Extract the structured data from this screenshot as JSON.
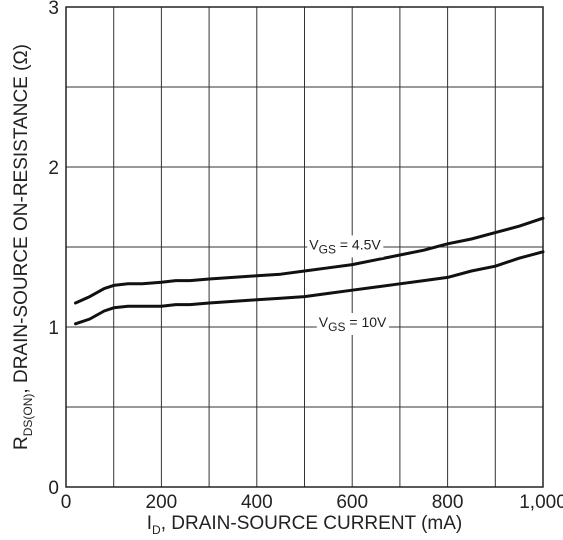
{
  "chart_data": {
    "type": "line",
    "xlabel": {
      "main": "I",
      "sub": "D",
      "rest": ", DRAIN-SOURCE CURRENT (mA)"
    },
    "ylabel": {
      "main": "R",
      "sub": "DS(ON)",
      "rest": ", DRAIN-SOURCE ON-RESISTANCE (Ω)"
    },
    "xlim": [
      0,
      1000
    ],
    "ylim": [
      0,
      3
    ],
    "x_ticks": [
      0,
      200,
      400,
      600,
      800,
      1000
    ],
    "x_tick_labels": [
      "0",
      "200",
      "400",
      "600",
      "800",
      "1,000"
    ],
    "y_ticks": [
      0,
      1,
      2,
      3
    ],
    "y_tick_labels": [
      "0",
      "1",
      "2",
      "3"
    ],
    "grid": true,
    "grid_x": [
      0,
      100,
      200,
      300,
      400,
      500,
      600,
      700,
      800,
      900,
      1000
    ],
    "grid_y": [
      0,
      0.5,
      1,
      1.5,
      2,
      2.5,
      3
    ],
    "series": [
      {
        "name": "V_GS = 4.5V",
        "label_parts": {
          "main": "V",
          "sub": "GS",
          "rest": " = 4.5V"
        },
        "x": [
          20,
          50,
          80,
          100,
          130,
          160,
          200,
          230,
          260,
          300,
          350,
          400,
          450,
          500,
          550,
          600,
          650,
          700,
          750,
          800,
          850,
          900,
          950,
          1000
        ],
        "y": [
          1.15,
          1.19,
          1.24,
          1.26,
          1.27,
          1.27,
          1.28,
          1.29,
          1.29,
          1.3,
          1.31,
          1.32,
          1.33,
          1.35,
          1.37,
          1.39,
          1.42,
          1.45,
          1.48,
          1.52,
          1.55,
          1.59,
          1.63,
          1.68
        ]
      },
      {
        "name": "V_GS = 10V",
        "label_parts": {
          "main": "V",
          "sub": "GS",
          "rest": " = 10V"
        },
        "x": [
          20,
          50,
          80,
          100,
          130,
          160,
          200,
          230,
          260,
          300,
          350,
          400,
          450,
          500,
          550,
          600,
          650,
          700,
          750,
          800,
          850,
          900,
          950,
          1000
        ],
        "y": [
          1.02,
          1.05,
          1.1,
          1.12,
          1.13,
          1.13,
          1.13,
          1.14,
          1.14,
          1.15,
          1.16,
          1.17,
          1.18,
          1.19,
          1.21,
          1.23,
          1.25,
          1.27,
          1.29,
          1.31,
          1.35,
          1.38,
          1.43,
          1.47
        ]
      }
    ]
  }
}
